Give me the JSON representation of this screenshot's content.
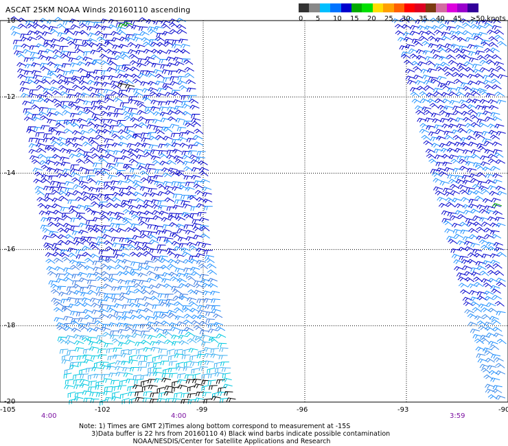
{
  "title": "ASCAT 25KM NOAA Winds 20160110 ascending",
  "legend": {
    "colors": [
      "#333333",
      "#888888",
      "#00bfff",
      "#0074ff",
      "#0000cc",
      "#00aa00",
      "#00e000",
      "#ffdd00",
      "#ffa000",
      "#ff6000",
      "#ff0000",
      "#dd0022",
      "#7a3a10",
      "#d26ca0",
      "#dd00dd",
      "#9900cc",
      "#330099"
    ],
    "labels": [
      "0",
      "5",
      "10",
      "15",
      "20",
      "25",
      "30",
      "35",
      "40",
      "45",
      ">50 knots"
    ],
    "units": "knots"
  },
  "map": {
    "lon_range": [
      -105,
      -90
    ],
    "lat_range": [
      -20,
      -10
    ],
    "lat_ticks": [
      "-10",
      "-12",
      "-14",
      "-16",
      "-18",
      "-20"
    ],
    "lon_ticks": [
      "-105",
      "-102",
      "-99",
      "-96",
      "-93",
      "-90"
    ],
    "time_labels": [
      "4:00",
      "4:00",
      "3:59"
    ],
    "grid": "dotted",
    "barb_colors_by_speed": {
      "low": "#00c8e0",
      "mid": "#1e90ff",
      "high": "#0000cc",
      "contamination": "#000000",
      "very_high": "#00aa00"
    }
  },
  "notes": {
    "line1": "Note: 1) Times are GMT 2)Times along bottom correspond to measurement at -15S",
    "line2": "3)Data buffer is 22 hrs from 20160110 4) Black wind barbs indicate possible contamination",
    "line3": "NOAA/NESDIS/Center for Satellite Applications and Research"
  }
}
